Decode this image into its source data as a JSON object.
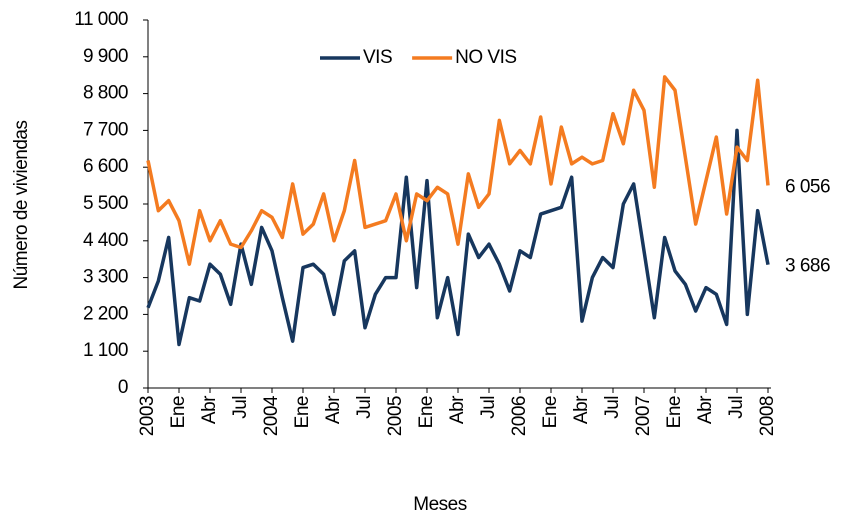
{
  "chart_data": {
    "type": "line",
    "x_label": "Meses",
    "y_label": "Número de viviendas",
    "categories": [
      "2003",
      null,
      null,
      "Ene",
      null,
      null,
      "Abr",
      null,
      null,
      "Jul",
      null,
      null,
      "2004",
      null,
      null,
      "Ene",
      null,
      null,
      "Abr",
      null,
      null,
      "Jul",
      null,
      null,
      "2005",
      null,
      null,
      "Ene",
      null,
      null,
      "Abr",
      null,
      null,
      "Jul",
      null,
      null,
      "2006",
      null,
      null,
      "Ene",
      null,
      null,
      "Abr",
      null,
      null,
      "Jul",
      null,
      null,
      "2007",
      null,
      null,
      "Ene",
      null,
      null,
      "Abr",
      null,
      null,
      "Jul",
      null,
      null,
      "2008"
    ],
    "series": [
      {
        "name": "VIS",
        "color": "#17375e",
        "values": [
          2400,
          3200,
          4500,
          1300,
          2700,
          2600,
          3700,
          3400,
          2500,
          4300,
          3100,
          4800,
          4100,
          2700,
          1400,
          3600,
          3700,
          3400,
          2200,
          3800,
          4100,
          1800,
          2800,
          3300,
          3300,
          6300,
          3000,
          6200,
          2100,
          3300,
          1600,
          4600,
          3900,
          4300,
          3700,
          2900,
          4100,
          3900,
          5200,
          5300,
          5400,
          6300,
          2000,
          3300,
          3900,
          3600,
          5500,
          6100,
          4100,
          2100,
          4500,
          3500,
          3100,
          2300,
          3000,
          2800,
          1900,
          7700,
          2200,
          5300,
          3686
        ],
        "value_labels": [
          null,
          null,
          null,
          null,
          null,
          null,
          null,
          null,
          null,
          null,
          null,
          null,
          null,
          null,
          null,
          null,
          null,
          null,
          null,
          null,
          null,
          null,
          null,
          null,
          null,
          null,
          null,
          null,
          null,
          null,
          null,
          null,
          null,
          null,
          null,
          null,
          null,
          null,
          null,
          null,
          null,
          null,
          null,
          null,
          null,
          null,
          null,
          null,
          null,
          null,
          null,
          null,
          null,
          null,
          null,
          null,
          null,
          null,
          null,
          null,
          "3 686"
        ]
      },
      {
        "name": "NO VIS",
        "color": "#f47b20",
        "values": [
          6800,
          5300,
          5600,
          5000,
          3700,
          5300,
          4400,
          5000,
          4300,
          4200,
          4700,
          5300,
          5100,
          4500,
          6100,
          4600,
          4900,
          5800,
          4400,
          5300,
          6800,
          4800,
          4900,
          5000,
          5800,
          4400,
          5800,
          5600,
          6000,
          5800,
          4300,
          6400,
          5400,
          5800,
          8000,
          6700,
          7100,
          6700,
          8100,
          6100,
          7800,
          6700,
          6900,
          6700,
          6800,
          8200,
          7300,
          8900,
          8300,
          6000,
          9300,
          8900,
          6900,
          4900,
          6200,
          7500,
          5200,
          7200,
          6800,
          9200,
          6056
        ],
        "value_labels": [
          null,
          null,
          null,
          null,
          null,
          null,
          null,
          null,
          null,
          null,
          null,
          null,
          null,
          null,
          null,
          null,
          null,
          null,
          null,
          null,
          null,
          null,
          null,
          null,
          null,
          null,
          null,
          null,
          null,
          null,
          null,
          null,
          null,
          null,
          null,
          null,
          null,
          null,
          null,
          null,
          null,
          null,
          null,
          null,
          null,
          null,
          null,
          null,
          null,
          null,
          null,
          null,
          null,
          null,
          null,
          null,
          null,
          null,
          null,
          null,
          "6 056"
        ]
      }
    ],
    "ylim": [
      0,
      11000
    ],
    "yticks": [
      0,
      {
        "value": 1100,
        "label": "1 100"
      },
      {
        "value": 2200,
        "label": "2 200"
      },
      {
        "value": 3300,
        "label": "3 300"
      },
      {
        "value": 4400,
        "label": "4 400"
      },
      {
        "value": 5500,
        "label": "5 500"
      },
      {
        "value": 6600,
        "label": "6 600"
      },
      {
        "value": 7700,
        "label": "7 700"
      },
      {
        "value": 8800,
        "label": "8 800"
      },
      {
        "value": 9900,
        "label": "9 900"
      },
      {
        "value": 11000,
        "label": "11 000"
      }
    ],
    "legend": "top"
  }
}
